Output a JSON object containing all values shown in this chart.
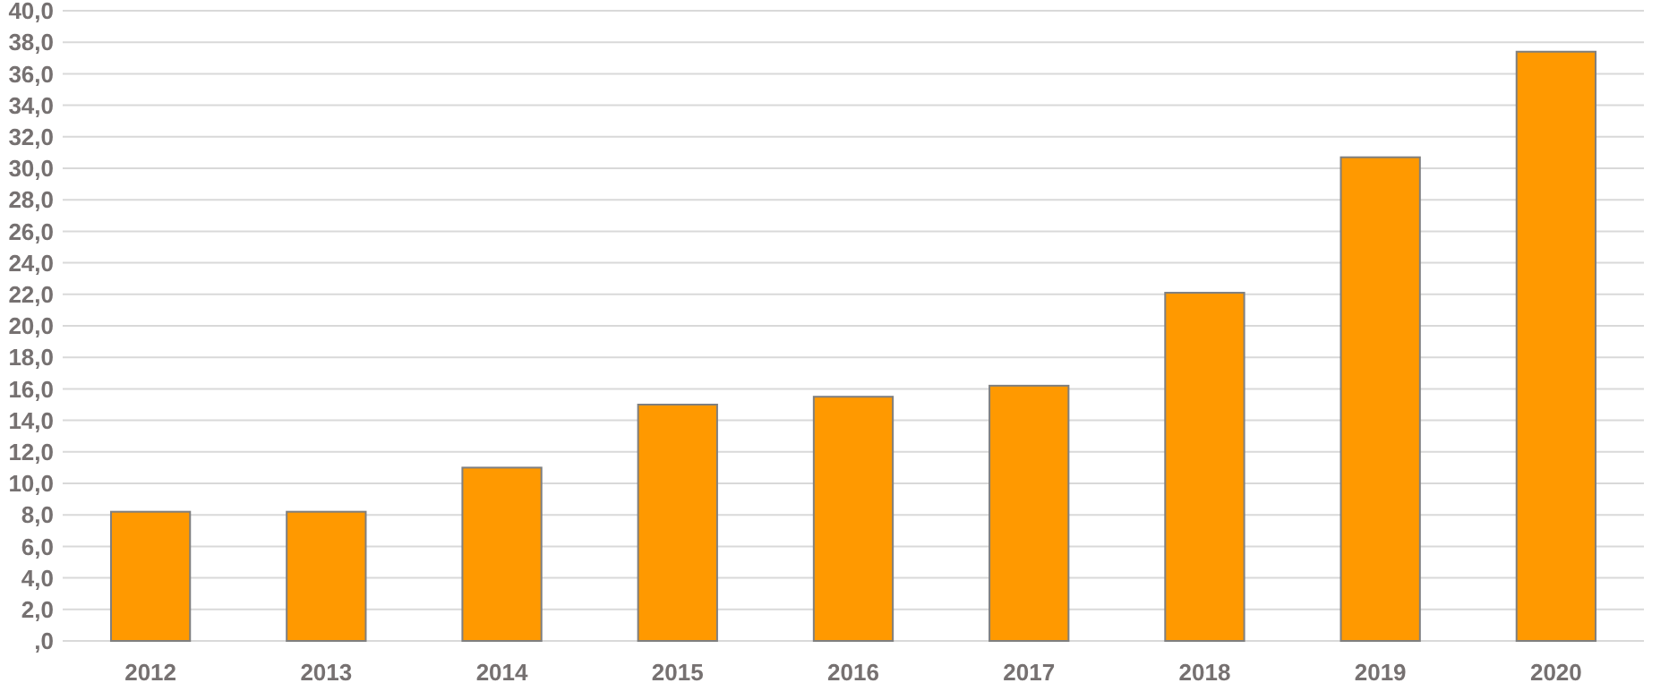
{
  "chart_data": {
    "type": "bar",
    "categories": [
      "2012",
      "2013",
      "2014",
      "2015",
      "2016",
      "2017",
      "2018",
      "2019",
      "2020"
    ],
    "values": [
      8.2,
      8.2,
      11.0,
      15.0,
      15.5,
      16.2,
      22.1,
      30.7,
      37.4
    ],
    "color": "#ff9900",
    "ylim": [
      0,
      40
    ],
    "yticks": [
      {
        "value": 0,
        "label": ",0"
      },
      {
        "value": 2,
        "label": "2,0"
      },
      {
        "value": 4,
        "label": "4,0"
      },
      {
        "value": 6,
        "label": "6,0"
      },
      {
        "value": 8,
        "label": "8,0"
      },
      {
        "value": 10,
        "label": "10,0"
      },
      {
        "value": 12,
        "label": "12,0"
      },
      {
        "value": 14,
        "label": "14,0"
      },
      {
        "value": 16,
        "label": "16,0"
      },
      {
        "value": 18,
        "label": "18,0"
      },
      {
        "value": 20,
        "label": "20,0"
      },
      {
        "value": 22,
        "label": "22,0"
      },
      {
        "value": 24,
        "label": "24,0"
      },
      {
        "value": 26,
        "label": "26,0"
      },
      {
        "value": 28,
        "label": "28,0"
      },
      {
        "value": 30,
        "label": "30,0"
      },
      {
        "value": 32,
        "label": "32,0"
      },
      {
        "value": 34,
        "label": "34,0"
      },
      {
        "value": 36,
        "label": "36,0"
      },
      {
        "value": 38,
        "label": "38,0"
      },
      {
        "value": 40,
        "label": "40,0"
      }
    ],
    "grid": "y"
  }
}
